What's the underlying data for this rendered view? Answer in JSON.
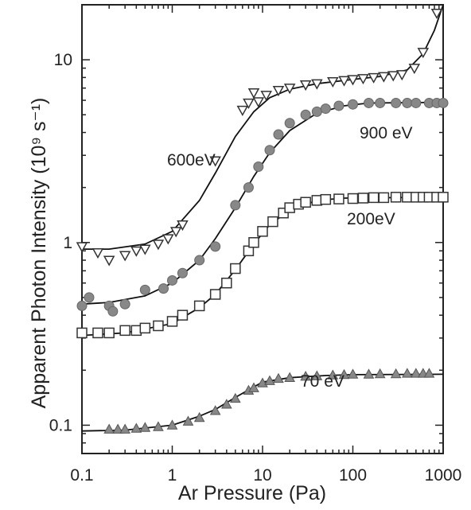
{
  "chart_data": {
    "type": "scatter",
    "xlabel": "Ar Pressure (Pa)",
    "ylabel": "Apparent Photon Intensity (10⁹ s⁻¹)",
    "x_scale": "log",
    "y_scale": "log",
    "xlim": [
      0.1,
      1000
    ],
    "ylim": [
      0.07,
      20
    ],
    "x_ticks": [
      "0.1",
      "1",
      "10",
      "100",
      "1000"
    ],
    "y_ticks": [
      "0.1",
      "1",
      "10"
    ],
    "grid": false,
    "legend": "none",
    "series": [
      {
        "name": "600eV",
        "marker": "triangle-down-open",
        "color": "#333333",
        "points": [
          [
            0.1,
            0.95
          ],
          [
            0.15,
            0.88
          ],
          [
            0.2,
            0.8
          ],
          [
            0.3,
            0.85
          ],
          [
            0.4,
            0.9
          ],
          [
            0.5,
            0.92
          ],
          [
            0.7,
            0.98
          ],
          [
            0.9,
            1.05
          ],
          [
            1.1,
            1.15
          ],
          [
            1.3,
            1.25
          ],
          [
            3,
            2.8
          ],
          [
            6,
            5.3
          ],
          [
            7,
            5.8
          ],
          [
            8,
            6.6
          ],
          [
            9,
            5.9
          ],
          [
            11,
            6.4
          ],
          [
            15,
            6.8
          ],
          [
            20,
            7.0
          ],
          [
            30,
            7.3
          ],
          [
            40,
            7.4
          ],
          [
            60,
            7.6
          ],
          [
            80,
            7.7
          ],
          [
            100,
            7.8
          ],
          [
            130,
            7.9
          ],
          [
            170,
            8.0
          ],
          [
            220,
            8.1
          ],
          [
            280,
            8.2
          ],
          [
            350,
            8.3
          ],
          [
            480,
            9.0
          ],
          [
            600,
            11.0
          ],
          [
            850,
            18.0
          ]
        ],
        "fit": [
          [
            0.1,
            0.92
          ],
          [
            0.2,
            0.92
          ],
          [
            0.5,
            0.98
          ],
          [
            1,
            1.15
          ],
          [
            2,
            1.7
          ],
          [
            3,
            2.4
          ],
          [
            5,
            3.8
          ],
          [
            8,
            5.2
          ],
          [
            12,
            6.2
          ],
          [
            20,
            6.9
          ],
          [
            40,
            7.4
          ],
          [
            100,
            7.8
          ],
          [
            200,
            8.1
          ],
          [
            400,
            8.8
          ],
          [
            600,
            10.8
          ],
          [
            800,
            14.5
          ],
          [
            1000,
            20
          ]
        ]
      },
      {
        "name": "900 eV",
        "marker": "circle-filled",
        "color": "#888888",
        "points": [
          [
            0.1,
            0.45
          ],
          [
            0.12,
            0.5
          ],
          [
            0.2,
            0.45
          ],
          [
            0.22,
            0.42
          ],
          [
            0.3,
            0.46
          ],
          [
            0.5,
            0.55
          ],
          [
            0.8,
            0.56
          ],
          [
            1,
            0.62
          ],
          [
            1.3,
            0.68
          ],
          [
            2,
            0.8
          ],
          [
            3,
            0.95
          ],
          [
            5,
            1.6
          ],
          [
            7,
            2.0
          ],
          [
            9,
            2.6
          ],
          [
            12,
            3.2
          ],
          [
            15,
            3.9
          ],
          [
            20,
            4.5
          ],
          [
            30,
            5.0
          ],
          [
            40,
            5.2
          ],
          [
            50,
            5.4
          ],
          [
            70,
            5.6
          ],
          [
            100,
            5.7
          ],
          [
            150,
            5.8
          ],
          [
            200,
            5.8
          ],
          [
            300,
            5.8
          ],
          [
            400,
            5.8
          ],
          [
            500,
            5.8
          ],
          [
            700,
            5.8
          ],
          [
            850,
            5.8
          ],
          [
            1000,
            5.8
          ]
        ],
        "fit": [
          [
            0.1,
            0.46
          ],
          [
            0.2,
            0.47
          ],
          [
            0.5,
            0.51
          ],
          [
            1,
            0.6
          ],
          [
            2,
            0.8
          ],
          [
            3,
            1.05
          ],
          [
            5,
            1.55
          ],
          [
            8,
            2.3
          ],
          [
            12,
            3.1
          ],
          [
            20,
            4.1
          ],
          [
            40,
            5.1
          ],
          [
            80,
            5.6
          ],
          [
            150,
            5.8
          ],
          [
            1000,
            5.85
          ]
        ]
      },
      {
        "name": "200eV",
        "marker": "square-open",
        "color": "#333333",
        "points": [
          [
            0.1,
            0.32
          ],
          [
            0.15,
            0.32
          ],
          [
            0.2,
            0.32
          ],
          [
            0.3,
            0.33
          ],
          [
            0.4,
            0.33
          ],
          [
            0.5,
            0.34
          ],
          [
            0.7,
            0.35
          ],
          [
            1,
            0.37
          ],
          [
            1.3,
            0.4
          ],
          [
            2,
            0.45
          ],
          [
            3,
            0.52
          ],
          [
            4,
            0.6
          ],
          [
            5,
            0.72
          ],
          [
            7,
            0.9
          ],
          [
            8,
            1.0
          ],
          [
            10,
            1.15
          ],
          [
            13,
            1.3
          ],
          [
            17,
            1.45
          ],
          [
            20,
            1.55
          ],
          [
            25,
            1.62
          ],
          [
            30,
            1.66
          ],
          [
            40,
            1.7
          ],
          [
            50,
            1.72
          ],
          [
            70,
            1.73
          ],
          [
            100,
            1.74
          ],
          [
            130,
            1.75
          ],
          [
            170,
            1.76
          ],
          [
            220,
            1.76
          ],
          [
            300,
            1.77
          ],
          [
            400,
            1.77
          ],
          [
            500,
            1.77
          ],
          [
            600,
            1.77
          ],
          [
            700,
            1.77
          ],
          [
            850,
            1.77
          ],
          [
            1000,
            1.77
          ]
        ],
        "fit": [
          [
            0.1,
            0.31
          ],
          [
            0.3,
            0.32
          ],
          [
            1,
            0.36
          ],
          [
            2,
            0.44
          ],
          [
            3,
            0.52
          ],
          [
            5,
            0.71
          ],
          [
            8,
            0.98
          ],
          [
            12,
            1.25
          ],
          [
            20,
            1.5
          ],
          [
            40,
            1.7
          ],
          [
            80,
            1.75
          ],
          [
            1000,
            1.77
          ]
        ]
      },
      {
        "name": "70 eV",
        "marker": "triangle-up-filled",
        "color": "#888888",
        "points": [
          [
            0.2,
            0.095
          ],
          [
            0.25,
            0.095
          ],
          [
            0.3,
            0.095
          ],
          [
            0.4,
            0.096
          ],
          [
            0.5,
            0.097
          ],
          [
            0.7,
            0.098
          ],
          [
            1,
            0.1
          ],
          [
            1.5,
            0.105
          ],
          [
            2,
            0.11
          ],
          [
            3,
            0.12
          ],
          [
            4,
            0.13
          ],
          [
            5,
            0.14
          ],
          [
            7,
            0.155
          ],
          [
            8,
            0.16
          ],
          [
            10,
            0.17
          ],
          [
            12,
            0.175
          ],
          [
            15,
            0.18
          ],
          [
            20,
            0.182
          ],
          [
            30,
            0.185
          ],
          [
            40,
            0.186
          ],
          [
            60,
            0.188
          ],
          [
            80,
            0.189
          ],
          [
            100,
            0.19
          ],
          [
            150,
            0.19
          ],
          [
            200,
            0.191
          ],
          [
            300,
            0.191
          ],
          [
            400,
            0.192
          ],
          [
            500,
            0.192
          ],
          [
            600,
            0.192
          ],
          [
            700,
            0.192
          ]
        ],
        "fit": [
          [
            0.1,
            0.093
          ],
          [
            0.3,
            0.094
          ],
          [
            1,
            0.1
          ],
          [
            2,
            0.112
          ],
          [
            3,
            0.122
          ],
          [
            5,
            0.142
          ],
          [
            8,
            0.162
          ],
          [
            10,
            0.172
          ],
          [
            20,
            0.182
          ],
          [
            50,
            0.187
          ],
          [
            100,
            0.189
          ],
          [
            1000,
            0.19
          ]
        ]
      }
    ]
  }
}
